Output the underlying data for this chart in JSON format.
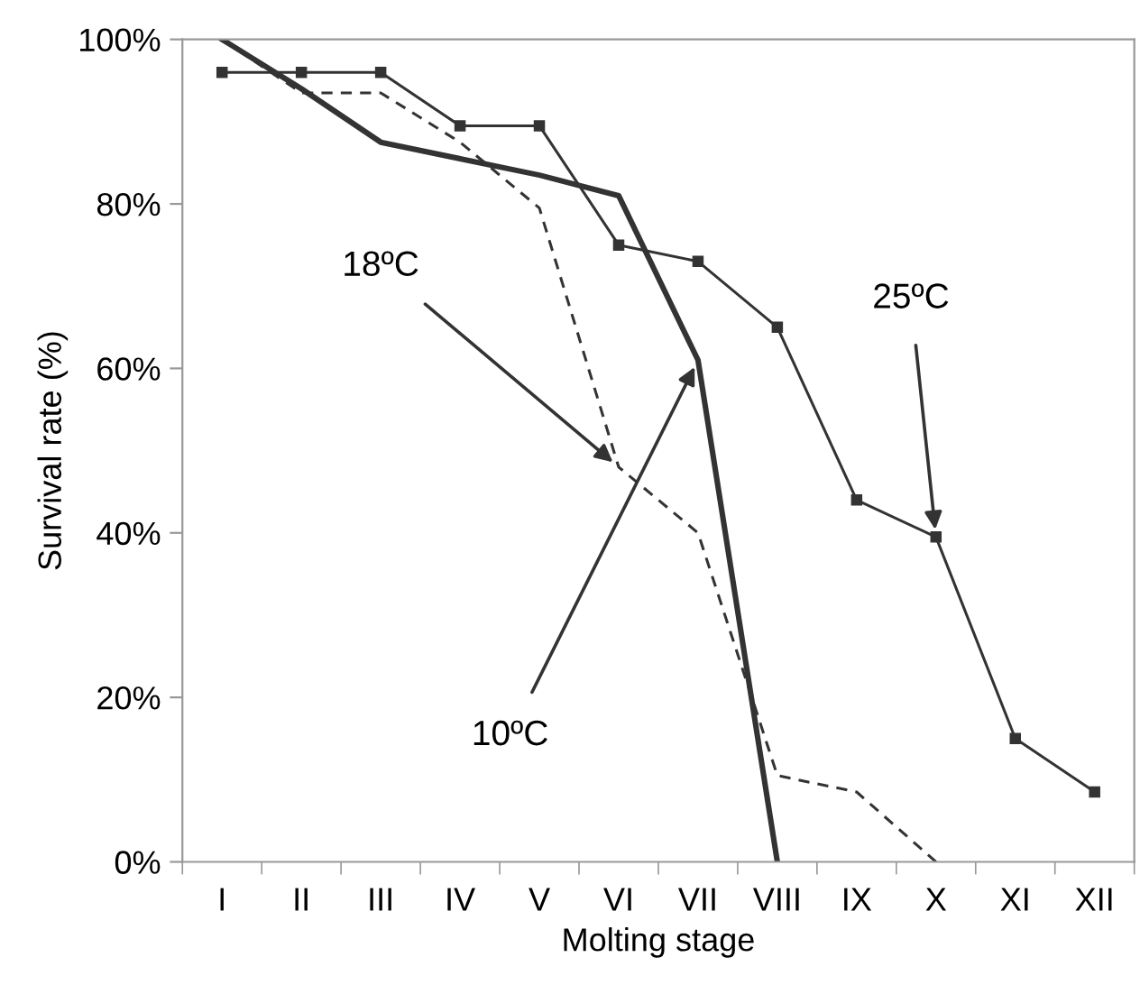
{
  "chart_data": {
    "type": "line",
    "xlabel": "Molting stage",
    "ylabel": "Survival rate (%)",
    "categories": [
      "I",
      "II",
      "III",
      "IV",
      "V",
      "VI",
      "VII",
      "VIII",
      "IX",
      "X",
      "XI",
      "XII"
    ],
    "series": [
      {
        "color": "#333333",
        "marker": "square",
        "line_style": "solid",
        "values": [
          96,
          96,
          96,
          89.5,
          89.5,
          75,
          73,
          65,
          44,
          39.5,
          15,
          8.5
        ]
      },
      {
        "color": "#333333",
        "marker": "none",
        "line_style": "dashed",
        "values": [
          100,
          93.5,
          93.5,
          87.5,
          79.5,
          48,
          40,
          10.5,
          8.5,
          0,
          null,
          null
        ]
      },
      {
        "color": "#333333",
        "marker": "none",
        "line_style": "solid",
        "values": [
          100,
          94,
          87.5,
          85.5,
          83.5,
          81,
          61,
          0,
          null,
          null,
          null,
          null
        ]
      }
    ],
    "ylim": [
      0,
      100
    ],
    "yticks": [
      {
        "value": 0,
        "label": "0%"
      },
      {
        "value": 20,
        "label": "20%"
      },
      {
        "value": 40,
        "label": "40%"
      },
      {
        "value": 60,
        "label": "60%"
      },
      {
        "value": 80,
        "label": "80%"
      },
      {
        "value": 100,
        "label": "100%"
      }
    ],
    "grid": false,
    "legend": false,
    "annotations": [
      {
        "text": "18ºC",
        "x": "VI",
        "y": 48
      },
      {
        "text": "10ºC",
        "x": "VII",
        "y": 61
      },
      {
        "text": "25ºC",
        "x": "X",
        "y": 39.5
      }
    ]
  }
}
